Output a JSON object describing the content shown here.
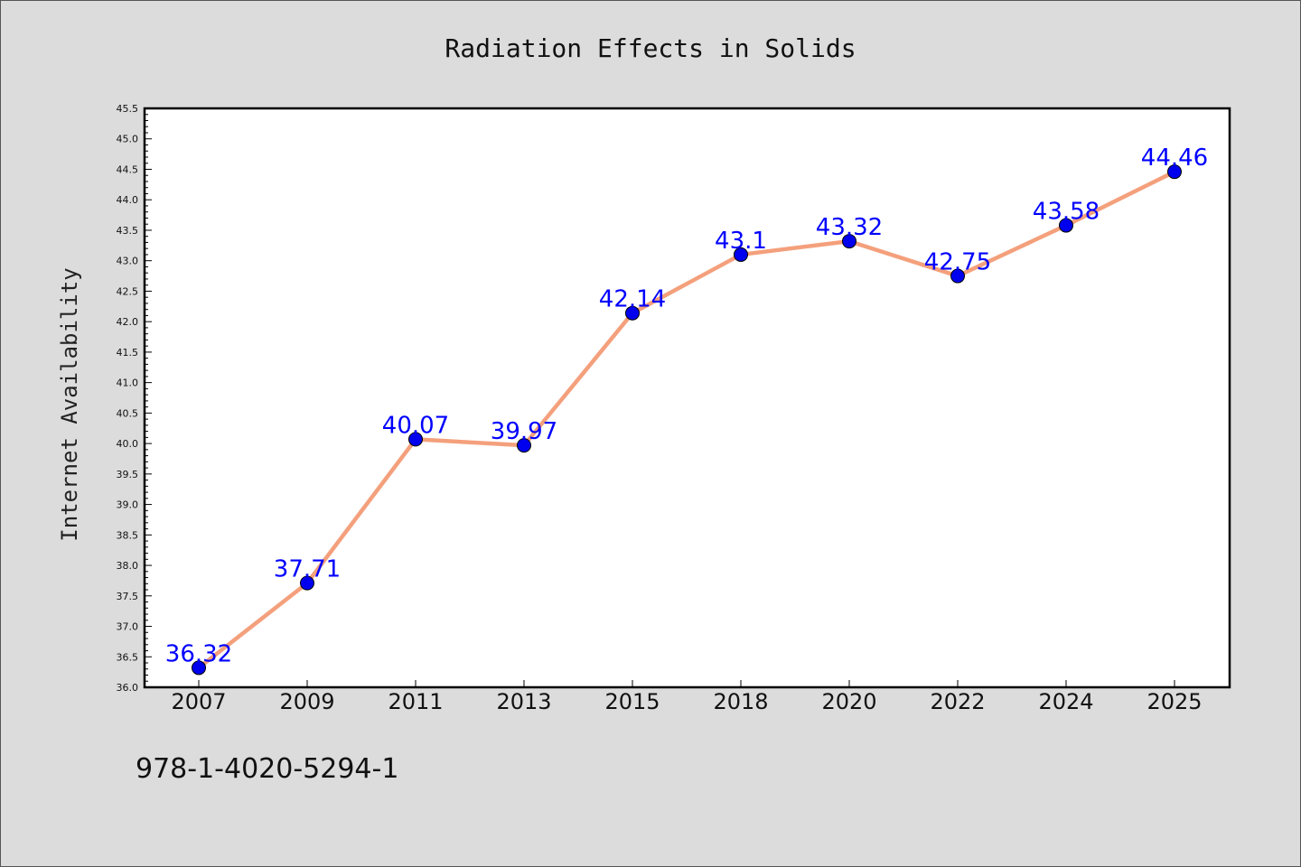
{
  "chart_data": {
    "type": "line",
    "title": "Radiation Effects in Solids",
    "xlabel": "",
    "ylabel": "Internet Availability",
    "categories": [
      "2007",
      "2009",
      "2011",
      "2013",
      "2015",
      "2018",
      "2020",
      "2022",
      "2024",
      "2025"
    ],
    "values": [
      36.32,
      37.71,
      40.07,
      39.97,
      42.14,
      43.1,
      43.32,
      42.75,
      43.58,
      44.46
    ],
    "data_labels": [
      "36.32",
      "37.71",
      "40.07",
      "39.97",
      "42.14",
      "43.1",
      "43.32",
      "42.75",
      "43.58",
      "44.46"
    ],
    "ylim": [
      36.0,
      45.5
    ],
    "ytick_step": 0.5,
    "grid": false,
    "line_color": "#f4a07c",
    "marker_color": "#0000ee",
    "label_color": "#0000ff"
  },
  "footer": {
    "code": "978-1-4020-5294-1"
  }
}
